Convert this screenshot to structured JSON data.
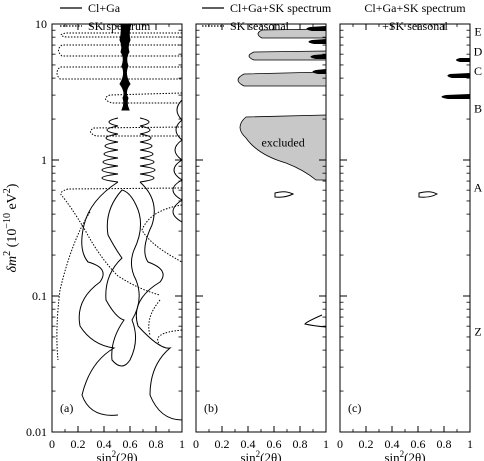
{
  "chart_data": {
    "type": "line",
    "shared_y_axis": {
      "label_prefix": "δm",
      "label_exp": "2",
      "label_units_a": "(10",
      "label_units_exp": "−10",
      "label_units_b": " eV",
      "label_units_exp2": "2",
      "label_units_c": ")",
      "scale": "log",
      "ylim": [
        0.01,
        10
      ],
      "tick_labels": [
        "0.01",
        "0.1",
        "1",
        "10"
      ],
      "tick_values": [
        0.01,
        0.1,
        1,
        10
      ]
    },
    "x_axis": {
      "label_base": "sin",
      "label_exp": "2",
      "label_arg": "(2θ)",
      "xlim": [
        0,
        1
      ],
      "tick_labels": [
        "0",
        "0.2",
        "0.4",
        "0.6",
        "0.8",
        "1"
      ],
      "tick_values": [
        0,
        0.2,
        0.4,
        0.6,
        0.8,
        1
      ]
    },
    "region_labels": [
      {
        "text": "E",
        "dm2": 8.8
      },
      {
        "text": "D",
        "dm2": 6.3
      },
      {
        "text": "C",
        "dm2": 4.5
      },
      {
        "text": "B",
        "dm2": 2.4
      },
      {
        "text": "A",
        "dm2": 0.63
      },
      {
        "text": "Z",
        "dm2": 0.055
      }
    ],
    "panels": [
      {
        "tag": "(a)",
        "legend": [
          {
            "text": "Cl+Ga",
            "style": "solid"
          },
          {
            "text": "SK spectrum",
            "style": "dotted"
          }
        ],
        "annotations": []
      },
      {
        "tag": "(b)",
        "legend": [
          {
            "text": "Cl+Ga+SK spectrum",
            "style": "solid"
          },
          {
            "text": "SK seasonal",
            "style": "dotted"
          }
        ],
        "annotations": [
          {
            "text": "excluded",
            "x": 0.67,
            "dm2": 1.35
          }
        ]
      },
      {
        "tag": "(c)",
        "legend": [
          {
            "text": "Cl+Ga+SK spectrum",
            "style": "none"
          },
          {
            "text": "+SK seasonal",
            "style": "none"
          }
        ],
        "annotations": []
      }
    ],
    "series_style": {
      "solid_color": "#000000",
      "shade_color": "#c8c8c8"
    }
  }
}
